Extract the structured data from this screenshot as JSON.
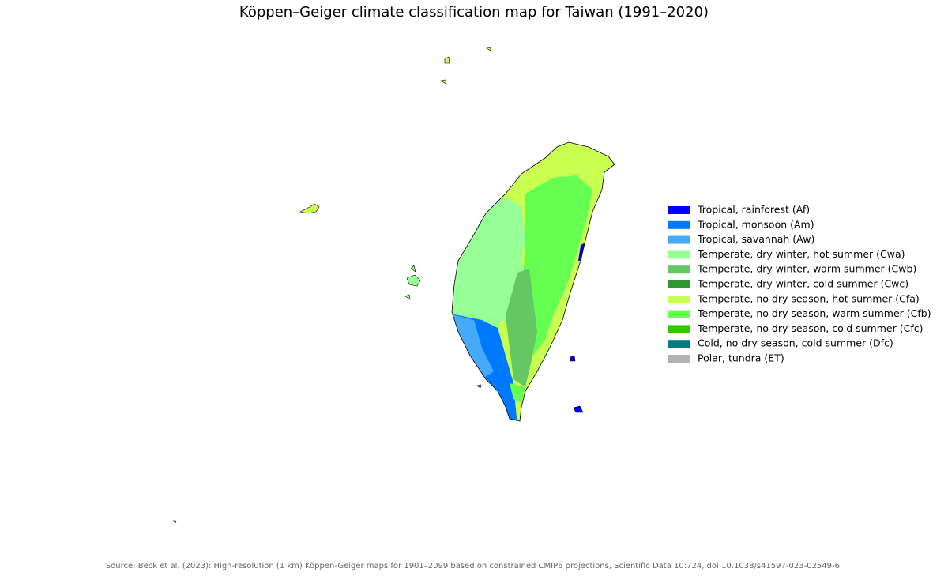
{
  "title": "Köppen–Geiger climate classification map for Taiwan (1991–2020)",
  "legend": [
    {
      "label": "Tropical, rainforest (Af)",
      "color": "#0000fe"
    },
    {
      "label": "Tropical, monsoon (Am)",
      "color": "#0078ff"
    },
    {
      "label": "Tropical, savannah (Aw)",
      "color": "#46aafa"
    },
    {
      "label": "Temperate, dry winter, hot summer (Cwa)",
      "color": "#96ff96"
    },
    {
      "label": "Temperate, dry winter, warm summer (Cwb)",
      "color": "#63c764"
    },
    {
      "label": "Temperate, dry winter, cold summer (Cwc)",
      "color": "#329633"
    },
    {
      "label": "Temperate, no dry season, hot summer (Cfa)",
      "color": "#c8ff50"
    },
    {
      "label": "Temperate, no dry season, warm summer (Cfb)",
      "color": "#64ff50"
    },
    {
      "label": "Temperate, no dry season, cold summer (Cfc)",
      "color": "#32c800"
    },
    {
      "label": "Cold, no dry season, cold summer (Dfc)",
      "color": "#007d7d"
    },
    {
      "label": "Polar, tundra (ET)",
      "color": "#b2b2b2"
    }
  ],
  "source": "Source: Beck et al. (2023): High-resolution (1 km) Köppen-Geiger maps for 1901–2099 based on constrained CMIP6 projections, Scientific Data 10:724, doi:10.1038/s41597-023-02549-6."
}
